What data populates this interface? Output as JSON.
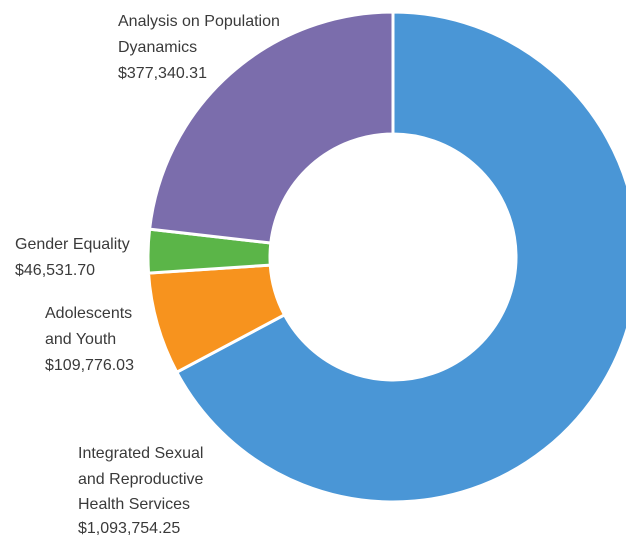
{
  "chart_data": {
    "type": "pie",
    "variant": "donut",
    "title": "",
    "start_angle_deg": 0,
    "direction": "clockwise",
    "slices": [
      {
        "label_lines": [
          "Integrated Sexual",
          "and Reproductive",
          "Health Services"
        ],
        "value": 1093754.25,
        "value_label": "$1,093,754.25",
        "color": "#4A96D6"
      },
      {
        "label_lines": [
          "Adolescents",
          "and Youth"
        ],
        "value": 109776.03,
        "value_label": "$109,776.03",
        "color": "#F7931E"
      },
      {
        "label_lines": [
          "Gender Equality"
        ],
        "value": 46531.7,
        "value_label": "$46,531.70",
        "color": "#5BB548"
      },
      {
        "label_lines": [
          "Analysis on Population",
          "Dyanamics"
        ],
        "value": 377340.31,
        "value_label": "$377,340.31",
        "color": "#7B6DAC"
      }
    ]
  }
}
